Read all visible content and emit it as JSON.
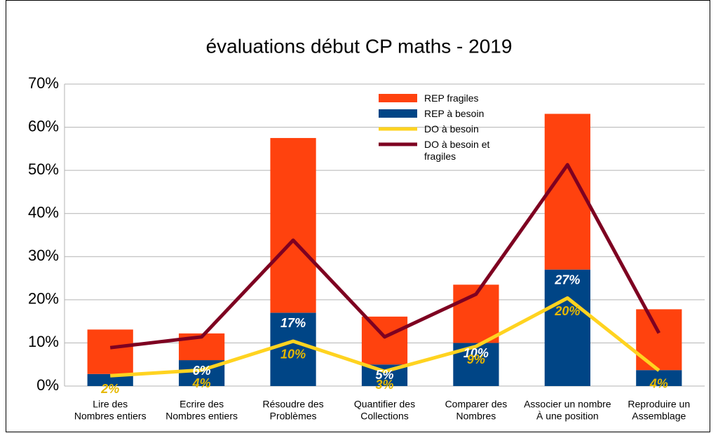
{
  "chart_data": {
    "type": "bar",
    "stacked": true,
    "title": "évaluations début CP maths - 2019",
    "categories": [
      [
        "Lire des",
        "Nombres entiers"
      ],
      [
        "Ecrire des",
        "Nombres entiers"
      ],
      [
        "Résoudre des",
        "Problèmes"
      ],
      [
        "Quantifier des",
        "Collections"
      ],
      [
        "Comparer des",
        "Nombres"
      ],
      [
        "Associer un nombre",
        "À une position"
      ],
      [
        "Reproduire un",
        "Assemblage"
      ]
    ],
    "series": [
      {
        "name": "REP fragiles",
        "type": "bar",
        "color": "#ff420e",
        "values": [
          10.3,
          6.2,
          40.5,
          11.1,
          13.5,
          36.1,
          14.1
        ]
      },
      {
        "name": "REP à besoin",
        "type": "bar",
        "color": "#004586",
        "values": [
          2.8,
          6,
          17,
          5,
          10,
          27,
          3.7
        ],
        "value_labels": [
          null,
          "6%",
          "17%",
          "5%",
          "10%",
          "27%",
          null
        ],
        "label_color": "#ffffff"
      },
      {
        "name": "DO à besoin",
        "type": "line",
        "color": "#ffd320",
        "values": [
          2.4,
          3.7,
          10.4,
          3.4,
          9.2,
          20.4,
          3.6
        ],
        "value_labels": [
          "2%",
          "4%",
          "10%",
          "3%",
          "9%",
          "20%",
          "4%"
        ],
        "label_color": "#e6b800"
      },
      {
        "name": "DO à besoin et fragiles",
        "type": "line",
        "color": "#7e0021",
        "values": [
          8.9,
          11.4,
          33.8,
          11.4,
          21.3,
          51.3,
          12.3
        ]
      }
    ],
    "ylim": [
      0,
      70
    ],
    "yticks": [
      {
        "value": 0,
        "label": "0%"
      },
      {
        "value": 10,
        "label": "10%"
      },
      {
        "value": 20,
        "label": "20%"
      },
      {
        "value": 30,
        "label": "30%"
      },
      {
        "value": 40,
        "label": "40%"
      },
      {
        "value": 50,
        "label": "50%"
      },
      {
        "value": 60,
        "label": "60%"
      },
      {
        "value": 70,
        "label": "70%"
      }
    ],
    "grid": true,
    "legend": "top-right"
  }
}
